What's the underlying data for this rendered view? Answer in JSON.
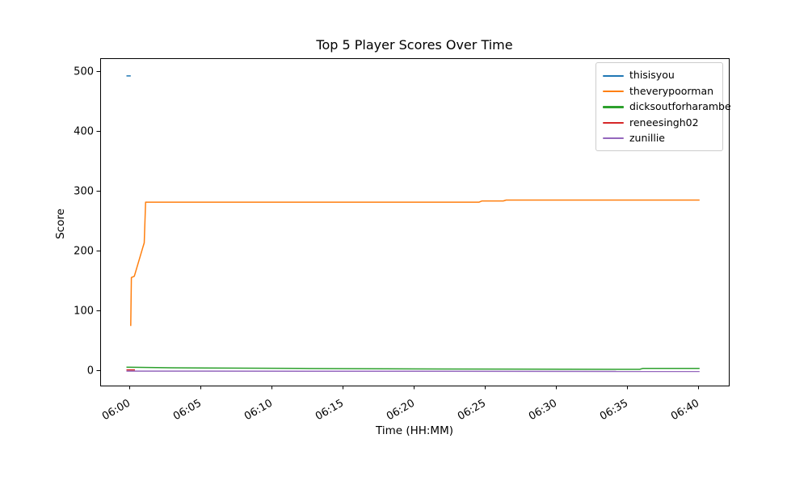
{
  "figure": {
    "background": "#ffffff",
    "axis_color": "#000000"
  },
  "chart_data": {
    "type": "line",
    "title": "Top 5 Player Scores Over Time",
    "xlabel": "Time (HH:MM)",
    "ylabel": "Score",
    "grid": false,
    "legend_position": "upper right",
    "x_unit": "minutes after 06:00",
    "x_tick_labels": [
      "06:00",
      "06:05",
      "06:10",
      "06:15",
      "06:20",
      "06:25",
      "06:30",
      "06:35",
      "06:40"
    ],
    "x_tick_minutes": [
      0,
      5,
      10,
      15,
      20,
      25,
      30,
      35,
      40
    ],
    "y_ticks": [
      0,
      100,
      200,
      300,
      400,
      500
    ],
    "xlim_minutes": [
      -2.05,
      42.2
    ],
    "ylim": [
      -26,
      522
    ],
    "series": [
      {
        "name": "thisisyou",
        "color": "#1f77b4",
        "points": [
          [
            -0.2,
            492
          ],
          [
            0.1,
            492
          ]
        ]
      },
      {
        "name": "theverypoorman",
        "color": "#ff7f0e",
        "points": [
          [
            0.1,
            74
          ],
          [
            0.15,
            155
          ],
          [
            0.35,
            157
          ],
          [
            0.95,
            205
          ],
          [
            1.05,
            213
          ],
          [
            1.15,
            281
          ],
          [
            24.6,
            281
          ],
          [
            24.8,
            283
          ],
          [
            26.3,
            283
          ],
          [
            26.5,
            284.5
          ],
          [
            40.1,
            284.5
          ]
        ]
      },
      {
        "name": "dicksoutforharambe",
        "color": "#2ca02c",
        "points": [
          [
            -0.2,
            5
          ],
          [
            3,
            4
          ],
          [
            12,
            3
          ],
          [
            22,
            2
          ],
          [
            35.9,
            1.5
          ],
          [
            36.1,
            3
          ],
          [
            40.1,
            3
          ]
        ]
      },
      {
        "name": "reneesingh02",
        "color": "#d62728",
        "points": [
          [
            -0.2,
            0.5
          ],
          [
            0.4,
            0.5
          ]
        ]
      },
      {
        "name": "zunillie",
        "color": "#9467bd",
        "points": [
          [
            -0.2,
            -1.5
          ],
          [
            40.1,
            -2
          ]
        ]
      }
    ]
  }
}
